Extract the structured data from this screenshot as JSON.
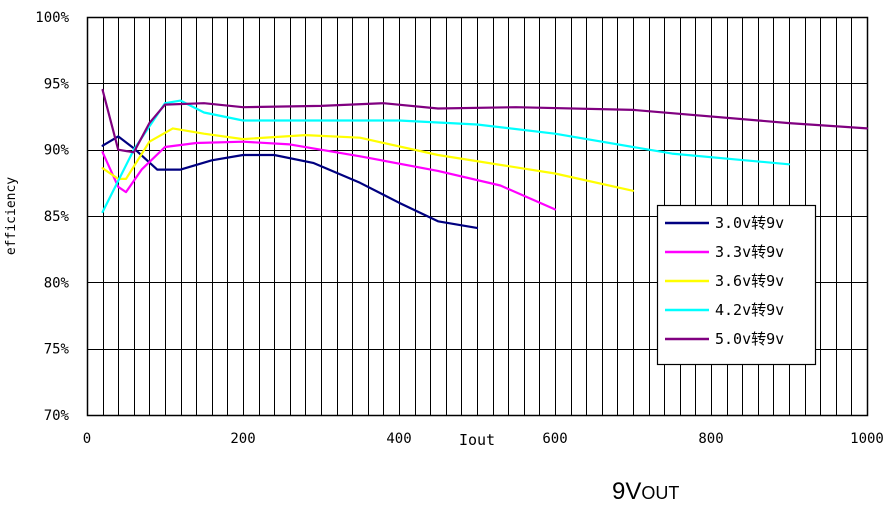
{
  "caption": {
    "main": "9V",
    "sub": "OUT"
  },
  "chart_data": {
    "type": "line",
    "title": "",
    "xlabel": "Iout",
    "ylabel": "efficiency",
    "xlim": [
      0,
      1000
    ],
    "ylim": [
      70,
      100
    ],
    "x_ticks": [
      0,
      200,
      400,
      600,
      800,
      1000
    ],
    "y_ticks": [
      70,
      75,
      80,
      85,
      90,
      95,
      100
    ],
    "y_tick_labels": [
      "70%",
      "75%",
      "80%",
      "85%",
      "90%",
      "95%",
      "100%"
    ],
    "grid": true,
    "legend_position": "right",
    "series": [
      {
        "name": "3.0v转9v",
        "color": "#000080",
        "x": [
          20,
          40,
          60,
          90,
          120,
          160,
          200,
          240,
          290,
          350,
          400,
          450,
          500
        ],
        "y": [
          90.3,
          91.0,
          90.1,
          88.5,
          88.5,
          89.2,
          89.6,
          89.6,
          89.0,
          87.5,
          86.0,
          84.6,
          84.1
        ]
      },
      {
        "name": "3.3v转9v",
        "color": "#ff00ff",
        "x": [
          20,
          40,
          50,
          70,
          100,
          140,
          200,
          260,
          350,
          450,
          530,
          600
        ],
        "y": [
          89.8,
          87.2,
          86.8,
          88.5,
          90.2,
          90.5,
          90.6,
          90.4,
          89.5,
          88.4,
          87.3,
          85.5
        ]
      },
      {
        "name": "3.6v转9v",
        "color": "#ffff00",
        "x": [
          20,
          40,
          50,
          80,
          110,
          150,
          200,
          280,
          350,
          450,
          600,
          700
        ],
        "y": [
          88.6,
          87.8,
          87.8,
          90.6,
          91.6,
          91.2,
          90.8,
          91.1,
          90.9,
          89.6,
          88.2,
          86.9
        ]
      },
      {
        "name": "4.2v转9v",
        "color": "#00ffff",
        "x": [
          20,
          60,
          100,
          120,
          150,
          200,
          300,
          400,
          500,
          600,
          750,
          900
        ],
        "y": [
          85.3,
          90.0,
          93.5,
          93.7,
          92.8,
          92.2,
          92.2,
          92.2,
          91.9,
          91.2,
          89.7,
          88.9
        ]
      },
      {
        "name": "5.0v转9v",
        "color": "#800080",
        "x": [
          20,
          40,
          60,
          80,
          100,
          150,
          200,
          300,
          380,
          450,
          550,
          700,
          900,
          1000
        ],
        "y": [
          94.5,
          90.0,
          89.8,
          92.0,
          93.4,
          93.5,
          93.2,
          93.3,
          93.5,
          93.1,
          93.2,
          93.0,
          92.0,
          91.6
        ]
      }
    ]
  }
}
